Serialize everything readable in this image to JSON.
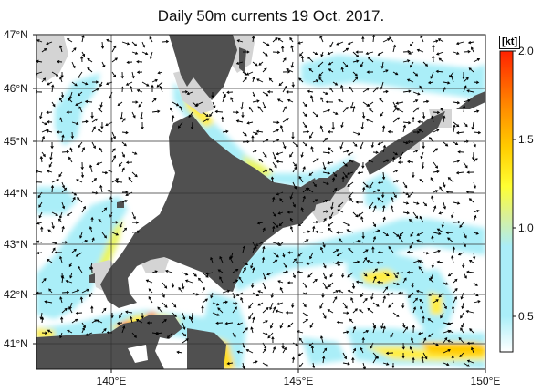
{
  "title": "Daily 50m currents 19 Oct. 2017.",
  "lat_ticks": [
    {
      "label": "47°N",
      "value": 47
    },
    {
      "label": "46°N",
      "value": 46
    },
    {
      "label": "45°N",
      "value": 45
    },
    {
      "label": "44°N",
      "value": 44
    },
    {
      "label": "43°N",
      "value": 43
    },
    {
      "label": "42°N",
      "value": 42
    },
    {
      "label": "41°N",
      "value": 41
    }
  ],
  "lon_ticks": [
    {
      "label": "140°E",
      "value": 140
    },
    {
      "label": "145°E",
      "value": 145
    },
    {
      "label": "150°E",
      "value": 150
    }
  ],
  "colorbar": {
    "unit": "[kt]",
    "ticks": [
      {
        "label": "2.0",
        "value": 2.0
      },
      {
        "label": "1.5",
        "value": 1.5
      },
      {
        "label": "1.0",
        "value": 1.0
      },
      {
        "label": "0.5",
        "value": 0.5
      }
    ],
    "range": [
      0.3,
      2.0
    ]
  },
  "colors": {
    "land": "#505050",
    "shelf": "#d4d4d4",
    "sea": "#ffffff",
    "grid": "#222222",
    "arrow": "#000000",
    "ramp": [
      "#ffffff",
      "#aaeef8",
      "#aaeef8",
      "#d8f09a",
      "#ffff33",
      "#ffcc00",
      "#ff8800",
      "#ff2200"
    ]
  }
}
